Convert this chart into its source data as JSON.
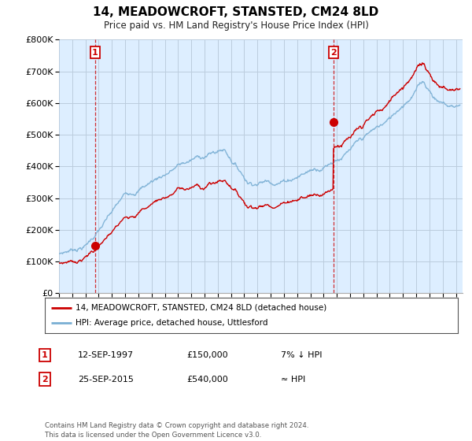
{
  "title": "14, MEADOWCROFT, STANSTED, CM24 8LD",
  "subtitle": "Price paid vs. HM Land Registry's House Price Index (HPI)",
  "legend_line1": "14, MEADOWCROFT, STANSTED, CM24 8LD (detached house)",
  "legend_line2": "HPI: Average price, detached house, Uttlesford",
  "annotation1_label": "1",
  "annotation1_date": "12-SEP-1997",
  "annotation1_price": "£150,000",
  "annotation1_note": "7% ↓ HPI",
  "annotation2_label": "2",
  "annotation2_date": "25-SEP-2015",
  "annotation2_price": "£540,000",
  "annotation2_note": "≈ HPI",
  "footer": "Contains HM Land Registry data © Crown copyright and database right 2024.\nThis data is licensed under the Open Government Licence v3.0.",
  "hpi_color": "#7aafd4",
  "price_color": "#cc0000",
  "marker_color": "#cc0000",
  "chart_bg": "#ddeeff",
  "background_color": "#ffffff",
  "grid_color": "#bbccdd",
  "ylim": [
    0,
    800000
  ],
  "yticks": [
    0,
    100000,
    200000,
    300000,
    400000,
    500000,
    600000,
    700000,
    800000
  ],
  "xlim_start": 1995.0,
  "xlim_end": 2025.5,
  "sale1_x": 1997.72,
  "sale1_y": 150000,
  "sale2_x": 2015.73,
  "sale2_y": 540000
}
